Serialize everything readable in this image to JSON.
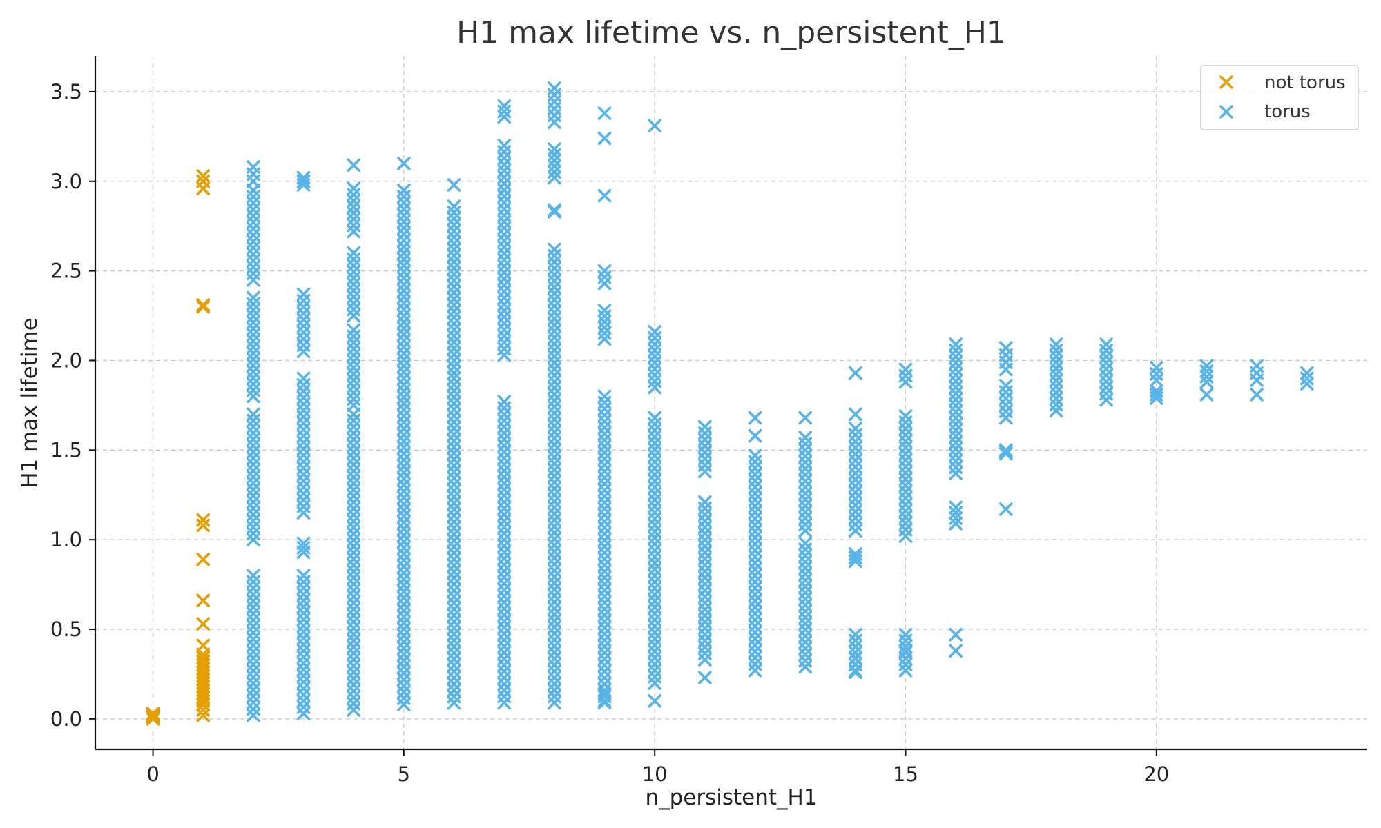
{
  "chart_data": {
    "type": "scatter",
    "title": "H1 max lifetime vs. n_persistent_H1",
    "xlabel": "n_persistent_H1",
    "ylabel": "H1 max lifetime",
    "xlim": [
      -1.15,
      24.2
    ],
    "ylim": [
      -0.17,
      3.7
    ],
    "xticks": [
      0,
      5,
      10,
      15,
      20
    ],
    "xtick_labels": [
      "0",
      "5",
      "10",
      "15",
      "20"
    ],
    "yticks": [
      0.0,
      0.5,
      1.0,
      1.5,
      2.0,
      2.5,
      3.0,
      3.5
    ],
    "ytick_labels": [
      "0.0",
      "0.5",
      "1.0",
      "1.5",
      "2.0",
      "2.5",
      "3.0",
      "3.5"
    ],
    "grid": true,
    "legend_position": "top-right",
    "series": [
      {
        "name": "not torus",
        "color": "#E69F00",
        "marker": "x",
        "points": [
          [
            0,
            0.0
          ],
          [
            0,
            0.01
          ],
          [
            0,
            0.02
          ],
          [
            0,
            0.03
          ],
          [
            1,
            0.02
          ],
          [
            1,
            0.05
          ],
          [
            1,
            0.08
          ],
          [
            1,
            0.1
          ],
          [
            1,
            0.12
          ],
          [
            1,
            0.14
          ],
          [
            1,
            0.16
          ],
          [
            1,
            0.18
          ],
          [
            1,
            0.2
          ],
          [
            1,
            0.22
          ],
          [
            1,
            0.24
          ],
          [
            1,
            0.26
          ],
          [
            1,
            0.28
          ],
          [
            1,
            0.3
          ],
          [
            1,
            0.32
          ],
          [
            1,
            0.34
          ],
          [
            1,
            0.36
          ],
          [
            1,
            0.41
          ],
          [
            1,
            0.53
          ],
          [
            1,
            0.66
          ],
          [
            1,
            0.89
          ],
          [
            1,
            1.08
          ],
          [
            1,
            1.11
          ],
          [
            1,
            2.3
          ],
          [
            1,
            2.31
          ],
          [
            1,
            2.96
          ],
          [
            1,
            3.0
          ],
          [
            1,
            3.03
          ]
        ]
      },
      {
        "name": "torus",
        "color": "#56B4E9",
        "marker": "x",
        "bands": [
          [
            2,
            0.02,
            0.8
          ],
          [
            2,
            1.0,
            1.7
          ],
          [
            2,
            1.8,
            2.35
          ],
          [
            2,
            2.45,
            2.95
          ],
          [
            2,
            3.0,
            3.08
          ],
          [
            3,
            0.03,
            0.8
          ],
          [
            3,
            0.93,
            0.98
          ],
          [
            3,
            1.15,
            1.9
          ],
          [
            3,
            2.05,
            2.37
          ],
          [
            3,
            2.98,
            3.02
          ],
          [
            4,
            0.05,
            1.7
          ],
          [
            4,
            1.75,
            2.17
          ],
          [
            4,
            2.25,
            2.6
          ],
          [
            4,
            2.72,
            2.96
          ],
          [
            4,
            3.09,
            3.09
          ],
          [
            5,
            0.08,
            2.95
          ],
          [
            5,
            3.1,
            3.1
          ],
          [
            6,
            0.09,
            1.9
          ],
          [
            6,
            1.93,
            2.86
          ],
          [
            6,
            2.98,
            2.98
          ],
          [
            7,
            0.09,
            1.77
          ],
          [
            7,
            2.03,
            3.2
          ],
          [
            7,
            3.36,
            3.42
          ],
          [
            8,
            0.09,
            2.62
          ],
          [
            8,
            2.83,
            2.84
          ],
          [
            8,
            3.02,
            3.18
          ],
          [
            8,
            3.33,
            3.52
          ],
          [
            9,
            0.09,
            1.8
          ],
          [
            9,
            2.12,
            2.28
          ],
          [
            9,
            2.43,
            2.5
          ],
          [
            9,
            2.92,
            2.92
          ],
          [
            9,
            3.24,
            3.24
          ],
          [
            9,
            3.38,
            3.38
          ],
          [
            10,
            0.2,
            1.68
          ],
          [
            10,
            1.85,
            2.16
          ],
          [
            10,
            3.31,
            3.31
          ],
          [
            11,
            0.33,
            1.21
          ],
          [
            11,
            1.38,
            1.63
          ],
          [
            12,
            0.27,
            1.47
          ],
          [
            12,
            1.58,
            1.58
          ],
          [
            12,
            1.68,
            1.68
          ],
          [
            13,
            0.29,
            0.98
          ],
          [
            13,
            1.05,
            1.57
          ],
          [
            13,
            1.68,
            1.68
          ],
          [
            14,
            0.27,
            0.47
          ],
          [
            14,
            0.88,
            0.92
          ],
          [
            14,
            1.05,
            1.62
          ],
          [
            14,
            1.7,
            1.7
          ],
          [
            14,
            1.93,
            1.93
          ],
          [
            15,
            0.27,
            0.47
          ],
          [
            15,
            1.02,
            1.69
          ],
          [
            15,
            1.88,
            1.95
          ],
          [
            16,
            1.09,
            1.18
          ],
          [
            16,
            1.37,
            2.09
          ],
          [
            17,
            1.48,
            1.5
          ],
          [
            17,
            1.68,
            1.86
          ],
          [
            17,
            1.95,
            2.07
          ],
          [
            18,
            1.72,
            2.09
          ],
          [
            19,
            1.78,
            2.09
          ],
          [
            20,
            1.79,
            1.83
          ],
          [
            20,
            1.89,
            1.96
          ],
          [
            21,
            1.88,
            1.97
          ],
          [
            22,
            1.89,
            1.97
          ],
          [
            23,
            1.87,
            1.93
          ]
        ],
        "points": [
          [
            9,
            0.1
          ],
          [
            9,
            0.14
          ],
          [
            10,
            0.1
          ],
          [
            11,
            0.23
          ],
          [
            14,
            0.26
          ],
          [
            14,
            0.34
          ],
          [
            15,
            0.38
          ],
          [
            16,
            0.38
          ],
          [
            16,
            0.47
          ],
          [
            17,
            1.17
          ],
          [
            21,
            1.81
          ],
          [
            22,
            1.81
          ]
        ]
      }
    ]
  }
}
